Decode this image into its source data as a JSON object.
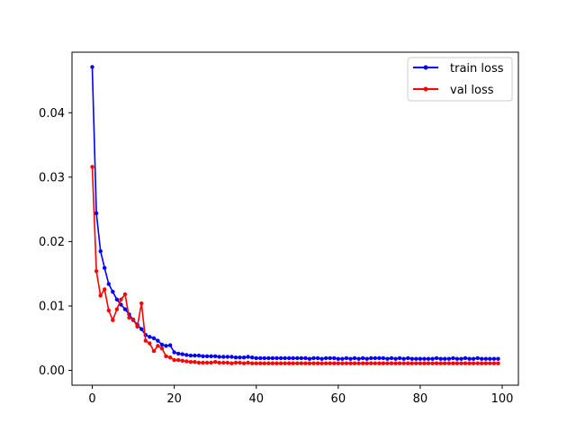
{
  "chart_data": {
    "type": "line",
    "title": "",
    "xlabel": "",
    "ylabel": "",
    "xlim": [
      -4.95,
      103.95
    ],
    "ylim": [
      -0.0023,
      0.0494
    ],
    "xticks": [
      0,
      20,
      40,
      60,
      80,
      100
    ],
    "xtick_labels": [
      "0",
      "20",
      "40",
      "60",
      "80",
      "100"
    ],
    "yticks": [
      0.0,
      0.01,
      0.02,
      0.03,
      0.04
    ],
    "ytick_labels": [
      "0.00",
      "0.01",
      "0.02",
      "0.03",
      "0.04"
    ],
    "grid": false,
    "legend_position": "top-right",
    "series": [
      {
        "name": "train loss",
        "color": "#0000ff",
        "marker": "dot",
        "x": [
          0,
          1,
          2,
          3,
          4,
          5,
          6,
          7,
          8,
          9,
          10,
          11,
          12,
          13,
          14,
          15,
          16,
          17,
          18,
          19,
          20,
          21,
          22,
          23,
          24,
          25,
          26,
          27,
          28,
          29,
          30,
          31,
          32,
          33,
          34,
          35,
          36,
          37,
          38,
          39,
          40,
          41,
          42,
          43,
          44,
          45,
          46,
          47,
          48,
          49,
          50,
          51,
          52,
          53,
          54,
          55,
          56,
          57,
          58,
          59,
          60,
          61,
          62,
          63,
          64,
          65,
          66,
          67,
          68,
          69,
          70,
          71,
          72,
          73,
          74,
          75,
          76,
          77,
          78,
          79,
          80,
          81,
          82,
          83,
          84,
          85,
          86,
          87,
          88,
          89,
          90,
          91,
          92,
          93,
          94,
          95,
          96,
          97,
          98,
          99
        ],
        "values": [
          0.0471,
          0.0244,
          0.0185,
          0.0159,
          0.0134,
          0.0122,
          0.011,
          0.0102,
          0.0095,
          0.0087,
          0.0078,
          0.0071,
          0.0064,
          0.0055,
          0.0052,
          0.005,
          0.0046,
          0.004,
          0.0038,
          0.0039,
          0.0028,
          0.0026,
          0.0025,
          0.0024,
          0.0023,
          0.0023,
          0.0023,
          0.0022,
          0.0022,
          0.0022,
          0.0022,
          0.0021,
          0.0021,
          0.0021,
          0.0021,
          0.002,
          0.002,
          0.002,
          0.0021,
          0.002,
          0.0019,
          0.0019,
          0.0019,
          0.0019,
          0.0019,
          0.0019,
          0.0019,
          0.0019,
          0.0019,
          0.0019,
          0.0019,
          0.0019,
          0.0019,
          0.0018,
          0.0019,
          0.0019,
          0.0018,
          0.0019,
          0.0019,
          0.0019,
          0.0018,
          0.0018,
          0.0019,
          0.0018,
          0.0019,
          0.0018,
          0.0019,
          0.0018,
          0.0019,
          0.0019,
          0.0019,
          0.0019,
          0.0018,
          0.0019,
          0.0018,
          0.0019,
          0.0018,
          0.0019,
          0.0018,
          0.0018,
          0.0018,
          0.0018,
          0.0018,
          0.0018,
          0.0019,
          0.0018,
          0.0018,
          0.0018,
          0.0019,
          0.0018,
          0.0018,
          0.0019,
          0.0018,
          0.0018,
          0.0019,
          0.0018,
          0.0018,
          0.0018,
          0.0018,
          0.0018
        ]
      },
      {
        "name": "val loss",
        "color": "#ff0000",
        "marker": "dot",
        "x": [
          0,
          1,
          2,
          3,
          4,
          5,
          6,
          7,
          8,
          9,
          10,
          11,
          12,
          13,
          14,
          15,
          16,
          17,
          18,
          19,
          20,
          21,
          22,
          23,
          24,
          25,
          26,
          27,
          28,
          29,
          30,
          31,
          32,
          33,
          34,
          35,
          36,
          37,
          38,
          39,
          40,
          41,
          42,
          43,
          44,
          45,
          46,
          47,
          48,
          49,
          50,
          51,
          52,
          53,
          54,
          55,
          56,
          57,
          58,
          59,
          60,
          61,
          62,
          63,
          64,
          65,
          66,
          67,
          68,
          69,
          70,
          71,
          72,
          73,
          74,
          75,
          76,
          77,
          78,
          79,
          80,
          81,
          82,
          83,
          84,
          85,
          86,
          87,
          88,
          89,
          90,
          91,
          92,
          93,
          94,
          95,
          96,
          97,
          98,
          99
        ],
        "values": [
          0.0316,
          0.0154,
          0.0116,
          0.0126,
          0.0093,
          0.0078,
          0.0095,
          0.011,
          0.0118,
          0.0082,
          0.0079,
          0.0068,
          0.0104,
          0.0046,
          0.0042,
          0.003,
          0.0038,
          0.0034,
          0.0022,
          0.002,
          0.0016,
          0.0016,
          0.0015,
          0.0014,
          0.0013,
          0.0013,
          0.0012,
          0.0012,
          0.0012,
          0.0012,
          0.0013,
          0.0012,
          0.0012,
          0.0012,
          0.0011,
          0.0012,
          0.0012,
          0.0011,
          0.0012,
          0.0011,
          0.0011,
          0.0011,
          0.0011,
          0.0011,
          0.0011,
          0.0011,
          0.0011,
          0.0011,
          0.0011,
          0.0011,
          0.0011,
          0.0011,
          0.0011,
          0.0011,
          0.0011,
          0.0011,
          0.0011,
          0.0011,
          0.0011,
          0.0011,
          0.0011,
          0.0011,
          0.0011,
          0.0011,
          0.0011,
          0.0011,
          0.0011,
          0.0011,
          0.0011,
          0.0011,
          0.0011,
          0.0011,
          0.0011,
          0.0011,
          0.0011,
          0.0011,
          0.0011,
          0.0011,
          0.0011,
          0.0011,
          0.0011,
          0.0011,
          0.0011,
          0.0011,
          0.0011,
          0.0011,
          0.0011,
          0.0011,
          0.0011,
          0.0011,
          0.0011,
          0.0011,
          0.0011,
          0.0011,
          0.0011,
          0.0011,
          0.0011,
          0.0011,
          0.0011,
          0.0011
        ]
      }
    ]
  }
}
